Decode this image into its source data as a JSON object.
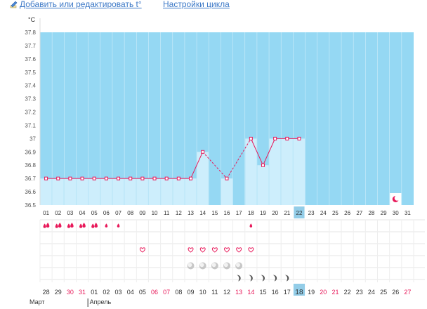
{
  "links": {
    "edit_temp": "Добавить или редактировать t°",
    "cycle_settings": "Настройки цикла"
  },
  "unit": "°C",
  "colors": {
    "bg": "#95d8f3",
    "bar": "#cdeefc",
    "line": "#e8195a",
    "highlight": "#93cde8",
    "red_text": "#e8195a"
  },
  "chart_data": {
    "type": "line",
    "title": "",
    "xlabel": "",
    "ylabel": "°C",
    "ylim": [
      36.5,
      37.8
    ],
    "yticks": [
      "36.5",
      "36.6",
      "36.7",
      "36.8",
      "36.9",
      "37",
      "37.1",
      "37.2",
      "37.3",
      "37.4",
      "37.5",
      "37.6",
      "37.7",
      "37.8"
    ],
    "cycle_days": [
      "01",
      "02",
      "03",
      "04",
      "05",
      "06",
      "07",
      "08",
      "09",
      "10",
      "11",
      "12",
      "13",
      "14",
      "15",
      "16",
      "17",
      "18",
      "19",
      "20",
      "21",
      "22",
      "23",
      "24",
      "25",
      "26",
      "27",
      "28",
      "29",
      "30",
      "31"
    ],
    "current_day_index": 21,
    "series": [
      {
        "values": [
          36.7,
          36.7,
          36.7,
          36.7,
          36.7,
          36.7,
          36.7,
          36.7,
          36.7,
          36.7,
          36.7,
          36.7,
          36.7,
          36.9,
          null,
          36.7,
          null,
          37.0,
          36.8,
          37.0,
          37.0,
          37.0,
          null,
          null,
          null,
          null,
          null,
          null,
          null,
          null,
          null
        ]
      }
    ],
    "dashed_segments": [
      [
        13,
        15
      ],
      [
        15,
        17
      ]
    ],
    "moon_day_index": 29
  },
  "symptoms": {
    "bleeding": [
      {
        "i": 0,
        "level": 2
      },
      {
        "i": 1,
        "level": 2
      },
      {
        "i": 2,
        "level": 2
      },
      {
        "i": 3,
        "level": 2
      },
      {
        "i": 4,
        "level": 2
      },
      {
        "i": 5,
        "level": 1
      },
      {
        "i": 6,
        "level": 1
      },
      {
        "i": 17,
        "level": 1
      }
    ],
    "hearts": [
      8,
      12,
      13,
      14,
      15,
      16,
      17
    ],
    "circles": [
      12,
      13,
      14,
      15,
      16
    ],
    "crescents": [
      16,
      17,
      18,
      19,
      20
    ]
  },
  "calendar": {
    "dates": [
      "28",
      "29",
      "30",
      "31",
      "01",
      "02",
      "03",
      "04",
      "05",
      "06",
      "07",
      "08",
      "09",
      "10",
      "11",
      "12",
      "13",
      "14",
      "15",
      "16",
      "17",
      "18",
      "19",
      "20",
      "21",
      "22",
      "23",
      "24",
      "25",
      "26",
      "27"
    ],
    "weekend_indices": [
      2,
      3,
      9,
      10,
      16,
      17,
      23,
      24,
      30
    ],
    "today_index": 21,
    "months": [
      {
        "label": "Март",
        "start": 0
      },
      {
        "label": "Апрель",
        "start": 4
      }
    ]
  }
}
